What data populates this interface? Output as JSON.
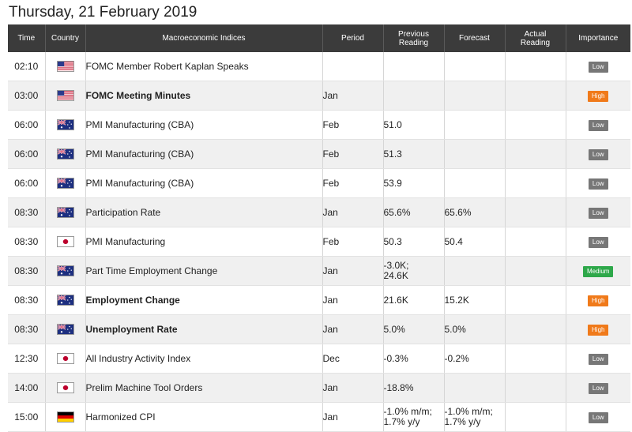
{
  "date_title": "Thursday, 21 February 2019",
  "columns": {
    "time": "Time",
    "country": "Country",
    "indices": "Macroeconomic Indices",
    "period": "Period",
    "previous_1": "Previous",
    "previous_2": "Reading",
    "forecast": "Forecast",
    "actual_1": "Actual",
    "actual_2": "Reading",
    "importance": "Importance"
  },
  "importance_colors": {
    "Low": "#777777",
    "High": "#f07a1a",
    "Medium": "#2ea84a"
  },
  "events": [
    {
      "time": "02:10",
      "country": "us-flag-icon",
      "name": "FOMC Member Robert Kaplan Speaks",
      "bold": false,
      "period": "",
      "previous": "",
      "forecast": "",
      "actual": "",
      "importance": "Low"
    },
    {
      "time": "03:00",
      "country": "us-flag-icon",
      "name": "FOMC Meeting Minutes",
      "bold": true,
      "period": "Jan",
      "previous": "",
      "forecast": "",
      "actual": "",
      "importance": "High"
    },
    {
      "time": "06:00",
      "country": "au-flag-icon",
      "name": "PMI Manufacturing (CBA)",
      "bold": false,
      "period": "Feb",
      "previous": "51.0",
      "forecast": "",
      "actual": "",
      "importance": "Low"
    },
    {
      "time": "06:00",
      "country": "au-flag-icon",
      "name": "PMI Manufacturing (CBA)",
      "bold": false,
      "period": "Feb",
      "previous": "51.3",
      "forecast": "",
      "actual": "",
      "importance": "Low"
    },
    {
      "time": "06:00",
      "country": "au-flag-icon",
      "name": "PMI Manufacturing (CBA)",
      "bold": false,
      "period": "Feb",
      "previous": "53.9",
      "forecast": "",
      "actual": "",
      "importance": "Low"
    },
    {
      "time": "08:30",
      "country": "au-flag-icon",
      "name": "Participation Rate",
      "bold": false,
      "period": "Jan",
      "previous": "65.6%",
      "forecast": "65.6%",
      "actual": "",
      "importance": "Low"
    },
    {
      "time": "08:30",
      "country": "jp-flag-icon",
      "name": "PMI Manufacturing",
      "bold": false,
      "period": "Feb",
      "previous": "50.3",
      "forecast": "50.4",
      "actual": "",
      "importance": "Low"
    },
    {
      "time": "08:30",
      "country": "au-flag-icon",
      "name": "Part Time Employment Change",
      "bold": false,
      "period": "Jan",
      "previous": "-3.0K;\n24.6K",
      "forecast": "",
      "actual": "",
      "importance": "Medium"
    },
    {
      "time": "08:30",
      "country": "au-flag-icon",
      "name": "Employment Change",
      "bold": true,
      "period": "Jan",
      "previous": "21.6K",
      "forecast": "15.2K",
      "actual": "",
      "importance": "High"
    },
    {
      "time": "08:30",
      "country": "au-flag-icon",
      "name": "Unemployment Rate",
      "bold": true,
      "period": "Jan",
      "previous": "5.0%",
      "forecast": "5.0%",
      "actual": "",
      "importance": "High"
    },
    {
      "time": "12:30",
      "country": "jp-flag-icon",
      "name": "All Industry Activity Index",
      "bold": false,
      "period": "Dec",
      "previous": "-0.3%",
      "forecast": "-0.2%",
      "actual": "",
      "importance": "Low"
    },
    {
      "time": "14:00",
      "country": "jp-flag-icon",
      "name": "Prelim Machine Tool Orders",
      "bold": false,
      "period": "Jan",
      "previous": "-18.8%",
      "forecast": "",
      "actual": "",
      "importance": "Low"
    },
    {
      "time": "15:00",
      "country": "de-flag-icon",
      "name": "Harmonized CPI",
      "bold": false,
      "period": "Jan",
      "previous": "-1.0% m/m;\n1.7% y/y",
      "forecast": "-1.0% m/m;\n1.7% y/y",
      "actual": "",
      "importance": "Low"
    }
  ]
}
